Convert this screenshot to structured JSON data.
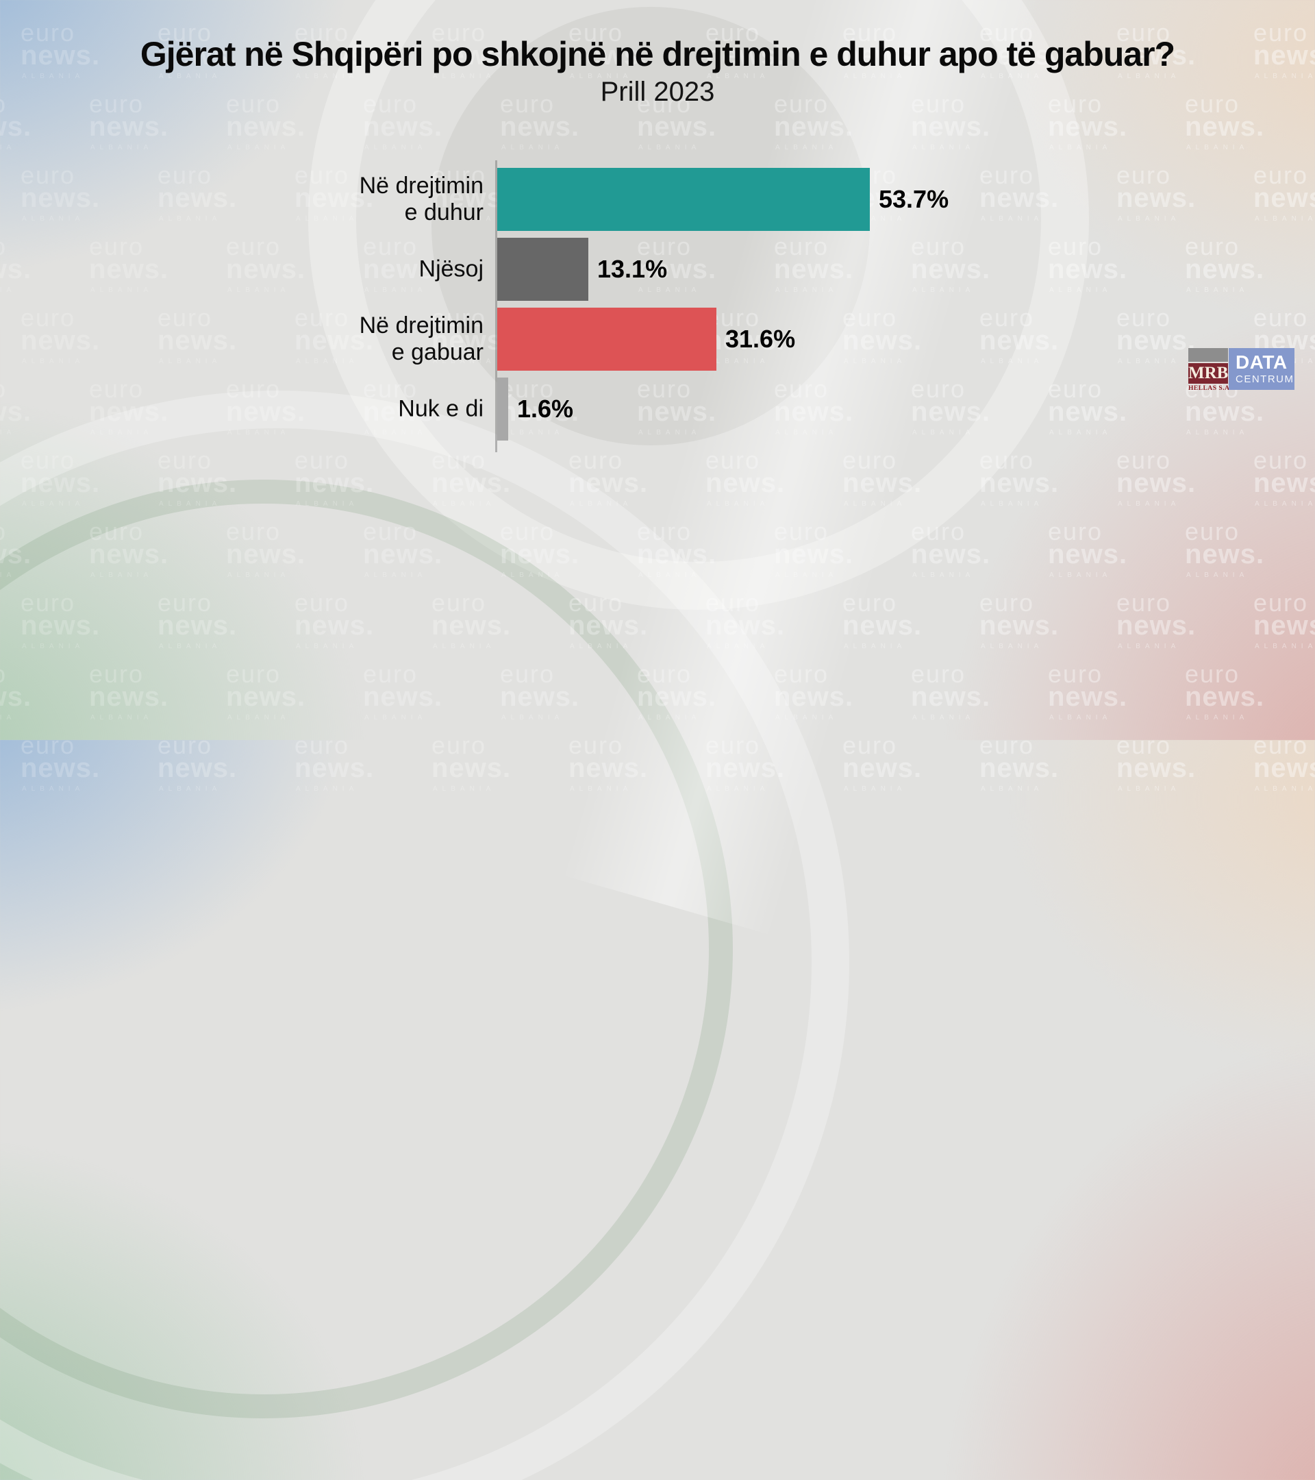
{
  "watermark": {
    "line1": "euro",
    "line2": "news.",
    "line3": "ALBANIA"
  },
  "chart_data": {
    "type": "bar",
    "orientation": "horizontal",
    "title": "Gjërat në Shqipëri po shkojnë në drejtimin e duhur apo të gabuar?",
    "subtitle": "Prill 2023",
    "categories": [
      "Në drejtimin e duhur",
      "Njësoj",
      "Në drejtimin e gabuar",
      "Nuk e di"
    ],
    "values": [
      53.7,
      13.1,
      31.6,
      1.6
    ],
    "value_labels": [
      "53.7%",
      "13.1%",
      "31.6%",
      "1.6%"
    ],
    "colors": [
      "#219a94",
      "#676767",
      "#dd5355",
      "#a8a8a8"
    ],
    "xlim": [
      0,
      57
    ],
    "grid": false,
    "legend": false,
    "bars": [
      {
        "label": "Në drejtimin\ne duhur",
        "value": 53.7,
        "value_label": "53.7%",
        "color": "#219a94"
      },
      {
        "label": "Njësoj",
        "value": 13.1,
        "value_label": "13.1%",
        "color": "#676767"
      },
      {
        "label": "Në drejtimin\ne gabuar",
        "value": 31.6,
        "value_label": "31.6%",
        "color": "#dd5355"
      },
      {
        "label": "Nuk e di",
        "value": 1.6,
        "value_label": "1.6%",
        "color": "#a8a8a8"
      }
    ]
  },
  "source_logos": {
    "mrb": {
      "name": "MRB",
      "subtitle": "HELLAS S.A."
    },
    "datacentrum": {
      "line1": "DATA",
      "line2": "CENTRUM",
      "bg": "#8498cc"
    }
  }
}
